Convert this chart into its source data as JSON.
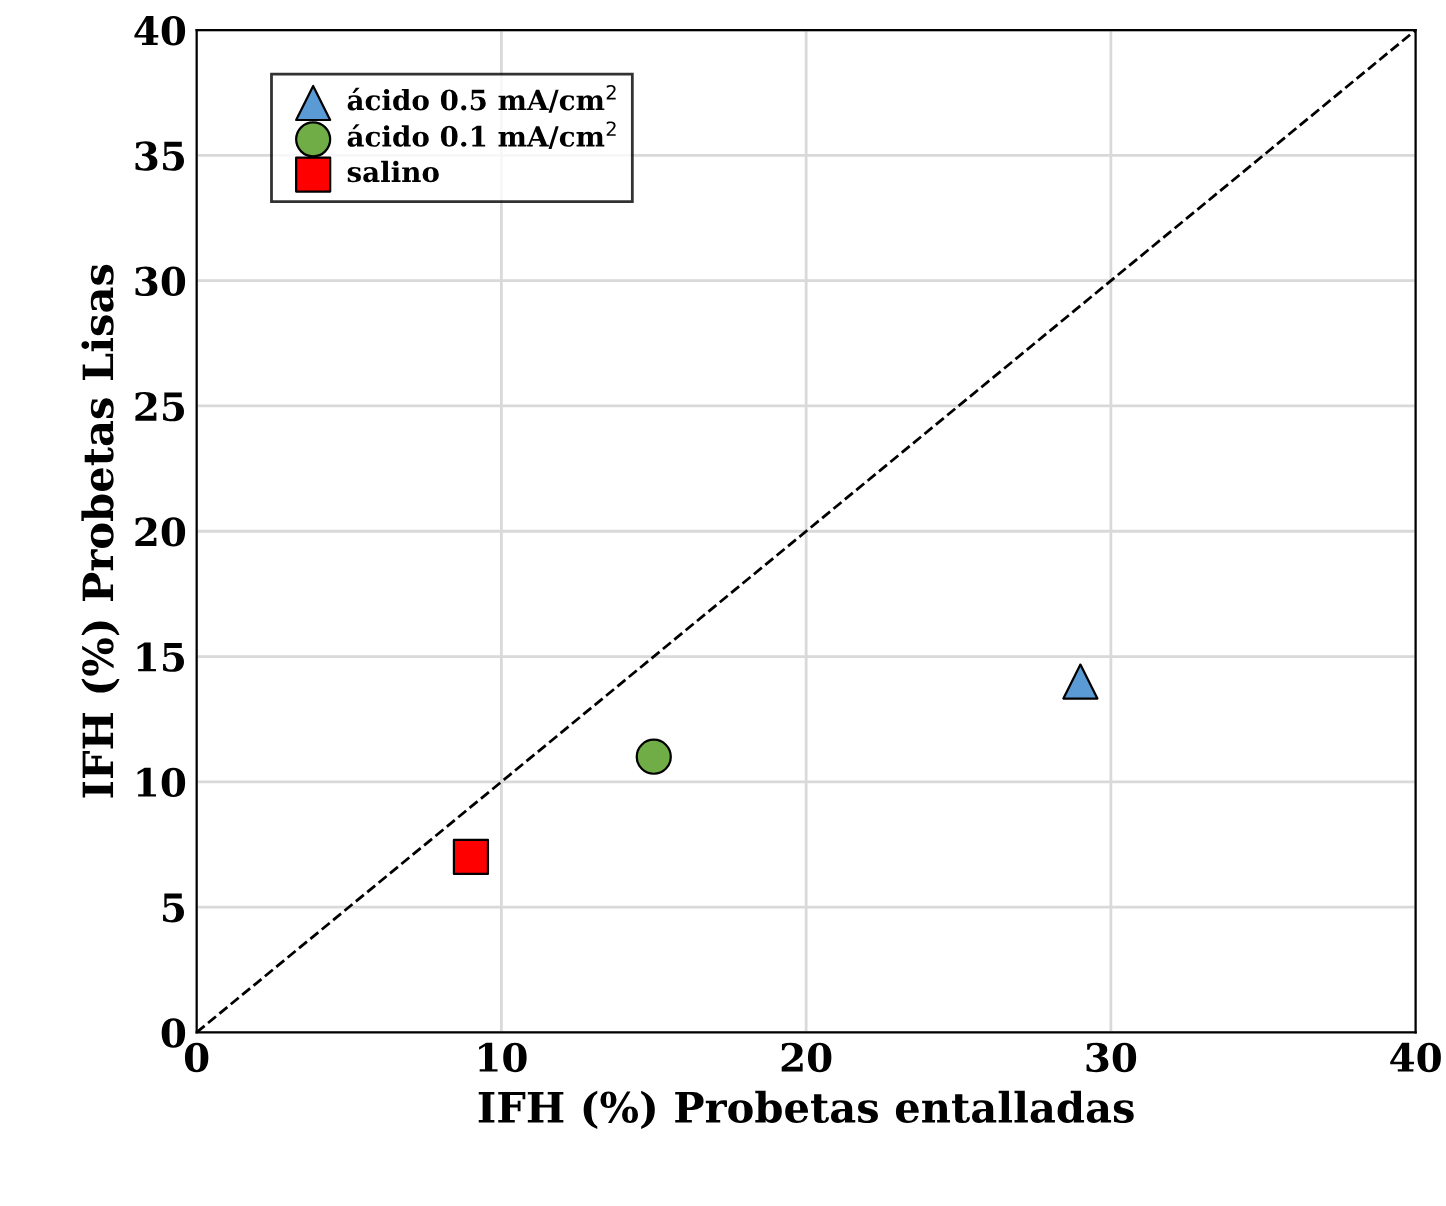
{
  "chart_data": {
    "type": "scatter",
    "xlabel": "IFH (%) Probetas entalladas",
    "ylabel": "IFH (%) Probetas Lisas",
    "xlim": [
      0,
      40
    ],
    "ylim": [
      0,
      40
    ],
    "xticks": [
      0,
      10,
      20,
      30,
      40
    ],
    "yticks": [
      0,
      5,
      10,
      15,
      20,
      25,
      30,
      35,
      40
    ],
    "grid": true,
    "legend": "top left",
    "series": [
      {
        "name": "ácido 0.5 mA/cm$^{2}$",
        "color": "#5b9bd5",
        "marker": "triangle",
        "x": [
          29
        ],
        "values": [
          14
        ]
      },
      {
        "name": "ácido 0.1 mA/cm$^{2}$",
        "color": "#70ad47",
        "marker": "circle",
        "x": [
          15
        ],
        "values": [
          11
        ]
      },
      {
        "name": "salino",
        "color": "#ff0000",
        "marker": "square",
        "x": [
          9
        ],
        "values": [
          7
        ]
      },
      {
        "type": "line",
        "color": "#000000",
        "marker": "none",
        "line_style": "dashed",
        "x": [
          0,
          40
        ],
        "values": [
          0,
          40
        ]
      }
    ]
  }
}
